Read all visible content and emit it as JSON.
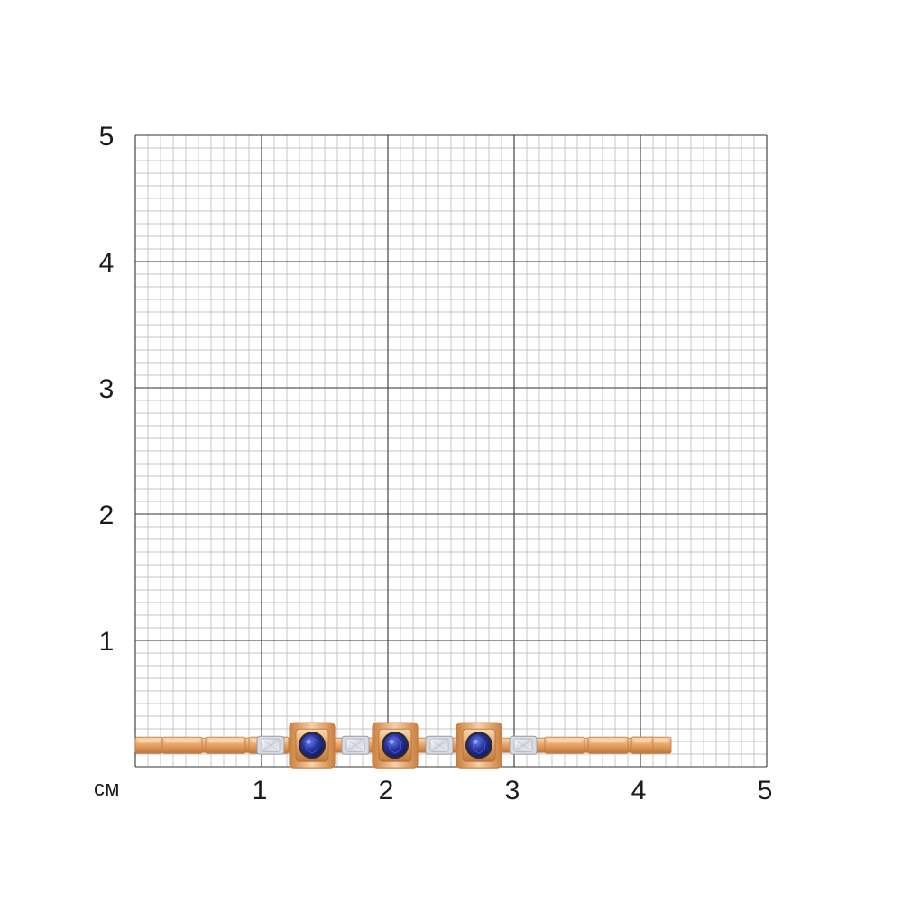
{
  "scale": {
    "unit_label": "см",
    "x_ticks": [
      "1",
      "2",
      "3",
      "4",
      "5"
    ],
    "y_ticks": [
      "1",
      "2",
      "3",
      "4",
      "5"
    ],
    "range_cm": [
      0,
      5
    ],
    "minor_divisions_per_cm": 10
  },
  "colors": {
    "minor_grid": "#b3b3b3",
    "major_grid": "#333333",
    "gold": "#e8a66c",
    "gold_dark": "#c47a3e",
    "gold_light": "#f8d9b4",
    "sapphire": "#1f2a8a",
    "sapphire_light": "#4f63d8",
    "diamond": "#e6e8ee"
  },
  "jewelry": {
    "item": "bracelet",
    "visible_length_cm": 4.1,
    "centerline_cm": 0.17,
    "sapphire_count": 3,
    "diamond_count": 4
  }
}
